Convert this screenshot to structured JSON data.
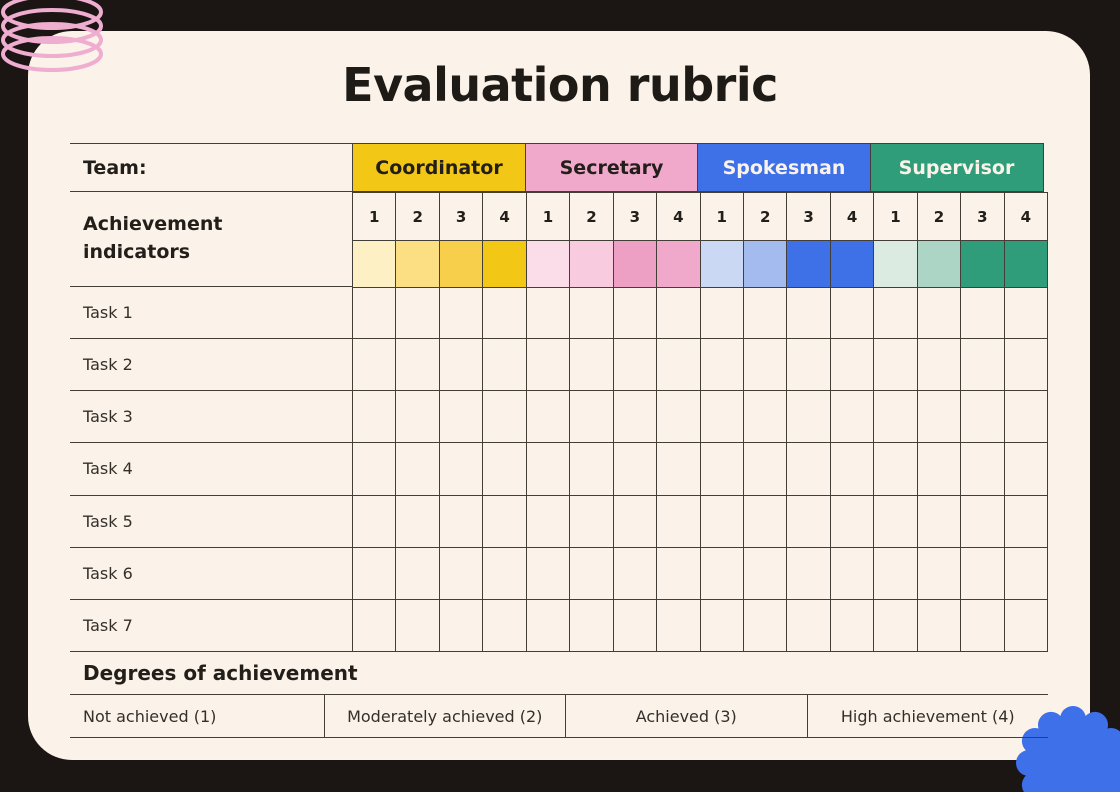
{
  "title": "Evaluation rubric",
  "table": {
    "team_label": "Team:",
    "achievement_label": "Achievement indicators",
    "score_levels": [
      "1",
      "2",
      "3",
      "4"
    ],
    "teams": [
      {
        "name": "Coordinator",
        "bg": "#F3C716",
        "text": "#221E1A",
        "swatches": [
          "#FCF0C4",
          "#FBDF82",
          "#F8CF4B",
          "#F3C716"
        ]
      },
      {
        "name": "Secretary",
        "bg": "#F0A9CB",
        "text": "#221E1A",
        "swatches": [
          "#FADDE9",
          "#F8CBDE",
          "#EE9FC4",
          "#F0A9CB"
        ]
      },
      {
        "name": "Spokesman",
        "bg": "#3E70E8",
        "text": "#FBF2E9",
        "swatches": [
          "#CBD8F4",
          "#A3BBEE",
          "#3E70E8",
          "#3E70E8"
        ]
      },
      {
        "name": "Supervisor",
        "bg": "#2F9D7A",
        "text": "#FBF2E9",
        "swatches": [
          "#DCEBE2",
          "#ADD5C5",
          "#2F9D7A",
          "#2F9D7A"
        ]
      }
    ],
    "tasks": [
      "Task 1",
      "Task 2",
      "Task 3",
      "Task 4",
      "Task 5",
      "Task 6",
      "Task 7"
    ],
    "degrees_heading": "Degrees of achievement",
    "degree_labels": [
      "Not achieved (1)",
      "Moderately achieved (2)",
      "Achieved (3)",
      "High achievement (4)"
    ]
  },
  "colors": {
    "frame": "#1B1613",
    "card": "#FBF2E9",
    "line": "#433E38",
    "title_text": "#1E1A16",
    "task_text": "#33302B",
    "spiral": "#EFADD0",
    "blob": "#3E70E9"
  }
}
